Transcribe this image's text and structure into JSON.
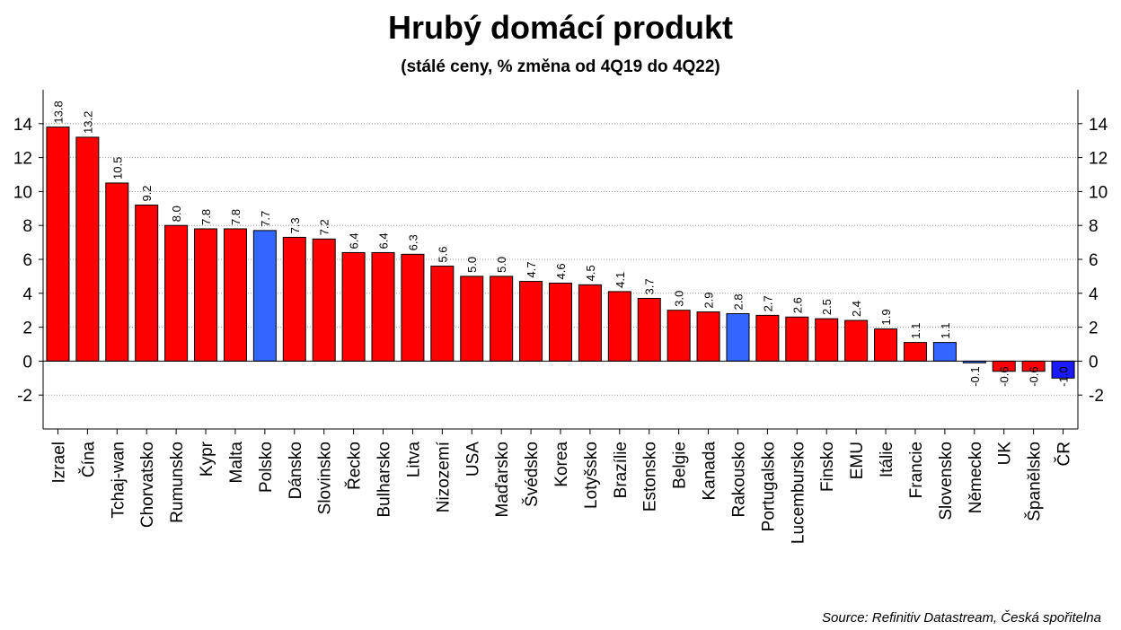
{
  "source": "Source: Refinitiv Datastream, Česká spořitelna",
  "colors": {
    "default": "#ff0000",
    "highlight": "#3366ff",
    "emphasis": "#1a1aff"
  },
  "chart_data": {
    "type": "bar",
    "title": "Hrubý domácí produkt",
    "subtitle": "(stálé ceny, % změna od 4Q19 do 4Q22)",
    "xlabel": "",
    "ylabel": "",
    "ylim": [
      -4,
      16
    ],
    "yticks": [
      14,
      12,
      10,
      8,
      6,
      4,
      2,
      0,
      -2
    ],
    "grid": true,
    "categories": [
      "Izrael",
      "Čína",
      "Tchaj-wan",
      "Chorvatsko",
      "Rumunsko",
      "Kypr",
      "Malta",
      "Polsko",
      "Dánsko",
      "Slovinsko",
      "Řecko",
      "Bulharsko",
      "Litva",
      "Nizozemí",
      "USA",
      "Maďarsko",
      "Švédsko",
      "Korea",
      "Lotyšsko",
      "Brazílie",
      "Estonsko",
      "Belgie",
      "Kanada",
      "Rakousko",
      "Portugalsko",
      "Lucembursko",
      "Finsko",
      "EMU",
      "Itálie",
      "Francie",
      "Slovensko",
      "Německo",
      "UK",
      "Španělsko",
      "ČR"
    ],
    "values": [
      13.8,
      13.2,
      10.5,
      9.2,
      8.0,
      7.8,
      7.8,
      7.7,
      7.3,
      7.2,
      6.4,
      6.4,
      6.3,
      5.6,
      5.0,
      5.0,
      4.7,
      4.6,
      4.5,
      4.1,
      3.7,
      3.0,
      2.9,
      2.8,
      2.7,
      2.6,
      2.5,
      2.4,
      1.9,
      1.1,
      1.1,
      -0.1,
      -0.6,
      -0.6,
      -1.0
    ],
    "labels": [
      "13.8",
      "13.2",
      "10.5",
      "9.2",
      "8.0",
      "7.8",
      "7.8",
      "7.7",
      "7.3",
      "7.2",
      "6.4",
      "6.4",
      "6.3",
      "5.6",
      "5.0",
      "5.0",
      "4.7",
      "4.6",
      "4.5",
      "4.1",
      "3.7",
      "3.0",
      "2.9",
      "2.8",
      "2.7",
      "2.6",
      "2.5",
      "2.4",
      "1.9",
      "1.1",
      "1.1",
      "-0.1",
      "-0.6",
      "-0.6",
      "-1.0"
    ],
    "highlight": [
      "Polsko",
      "Rakousko",
      "Slovensko",
      "Německo"
    ],
    "emphasis": [
      "ČR"
    ]
  }
}
